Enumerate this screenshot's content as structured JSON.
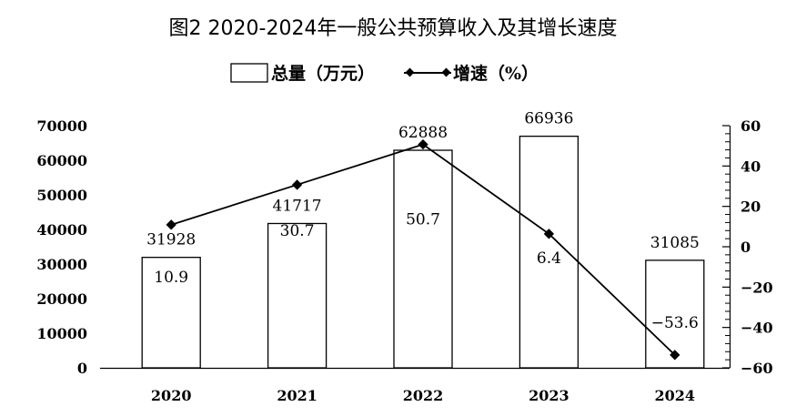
{
  "chart_data": {
    "type": "bar",
    "title": "图2 2020-2024年一般公共预算收入及其增长速度",
    "categories": [
      "2020",
      "2021",
      "2022",
      "2023",
      "2024"
    ],
    "series": [
      {
        "name": "总量（万元）",
        "type": "bar",
        "axis": "left",
        "values": [
          31928,
          41717,
          62888,
          66936,
          31085
        ],
        "labels": [
          "31928",
          "41717",
          "62888",
          "66936",
          "31085"
        ]
      },
      {
        "name": "增速（%）",
        "type": "line",
        "axis": "right",
        "values": [
          10.9,
          30.7,
          50.7,
          6.4,
          -53.6
        ],
        "labels": [
          "10.9",
          "30.7",
          "50.7",
          "6.4",
          "−53.6"
        ]
      }
    ],
    "y_left": {
      "min": 0,
      "max": 70000,
      "ticks": [
        "0",
        "10000",
        "20000",
        "30000",
        "40000",
        "50000",
        "60000",
        "70000"
      ]
    },
    "y_right": {
      "min": -60,
      "max": 60,
      "ticks": [
        "−60",
        "−40",
        "−20",
        "0",
        "20",
        "40",
        "60"
      ]
    },
    "legend": {
      "position": "top-center"
    },
    "grid": false,
    "colors": {
      "bar_fill": "#ffffff",
      "stroke": "#000000",
      "line": "#000000"
    }
  }
}
